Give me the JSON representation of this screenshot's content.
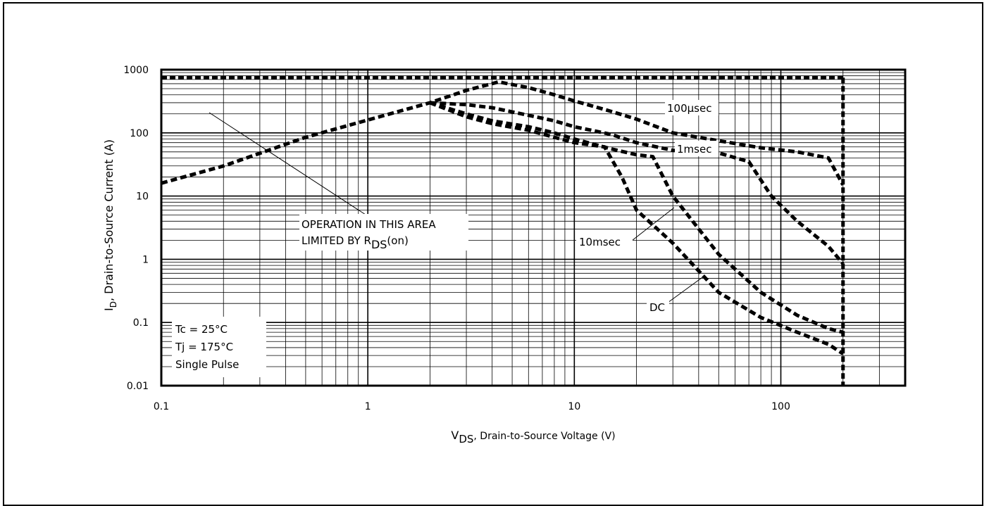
{
  "chart_data": {
    "type": "line",
    "xscale": "log",
    "yscale": "log",
    "xlim": [
      0.1,
      400
    ],
    "ylim": [
      0.01,
      1000
    ],
    "grid": true,
    "x_ticks": [
      "0.1",
      "1",
      "10",
      "100"
    ],
    "y_ticks": [
      "0.01",
      "0.1",
      "1",
      "10",
      "100",
      "1000"
    ],
    "xlabel": {
      "main": "V",
      "sub": "DS",
      "rest": ", Drain-to-Source Voltage (V)"
    },
    "ylabel": {
      "main": "I",
      "sub": "D",
      "rest": ",  Drain-to-Source Current (A)"
    },
    "annotations": {
      "rds_line1": "OPERATION IN THIS AREA",
      "rds_line2_pre": "LIMITED BY R",
      "rds_line2_sub": "DS",
      "rds_line2_post": "(on)",
      "conditions": [
        "Tc = 25°C",
        "Tj = 175°C",
        "Single Pulse"
      ]
    },
    "series": [
      {
        "name": "100µsec",
        "x": [
          0.1,
          0.2,
          0.5,
          1,
          2,
          3,
          4.3,
          6,
          8,
          10,
          15,
          20,
          30,
          50,
          80,
          120,
          170,
          200
        ],
        "y": [
          16,
          30,
          85,
          160,
          300,
          470,
          640,
          520,
          400,
          320,
          220,
          165,
          100,
          75,
          58,
          50,
          40,
          15
        ]
      },
      {
        "name": "1msec",
        "x": [
          2,
          3,
          4,
          6,
          8,
          10,
          15,
          20,
          25,
          30,
          50,
          70,
          90,
          120,
          170,
          200
        ],
        "y": [
          300,
          280,
          250,
          190,
          155,
          125,
          95,
          70,
          60,
          53,
          48,
          35,
          10,
          4,
          1.6,
          0.85
        ]
      },
      {
        "name": "10msec",
        "x": [
          2,
          3,
          4,
          6,
          8,
          10,
          15,
          20,
          24,
          30,
          50,
          80,
          120,
          170,
          200
        ],
        "y": [
          300,
          200,
          155,
          125,
          100,
          80,
          56,
          45,
          42,
          10,
          1.2,
          0.3,
          0.13,
          0.08,
          0.07
        ]
      },
      {
        "name": "DC",
        "x": [
          2,
          3,
          4,
          6,
          8,
          10,
          14,
          17,
          20,
          30,
          50,
          80,
          120,
          170,
          200
        ],
        "y": [
          300,
          180,
          140,
          110,
          85,
          70,
          60,
          20,
          6,
          1.8,
          0.3,
          0.12,
          0.07,
          0.045,
          0.032
        ]
      }
    ],
    "limit_current": 750,
    "limit_voltage": 200,
    "curve_labels": [
      "100µsec",
      "1msec",
      "10msec",
      "DC"
    ]
  }
}
